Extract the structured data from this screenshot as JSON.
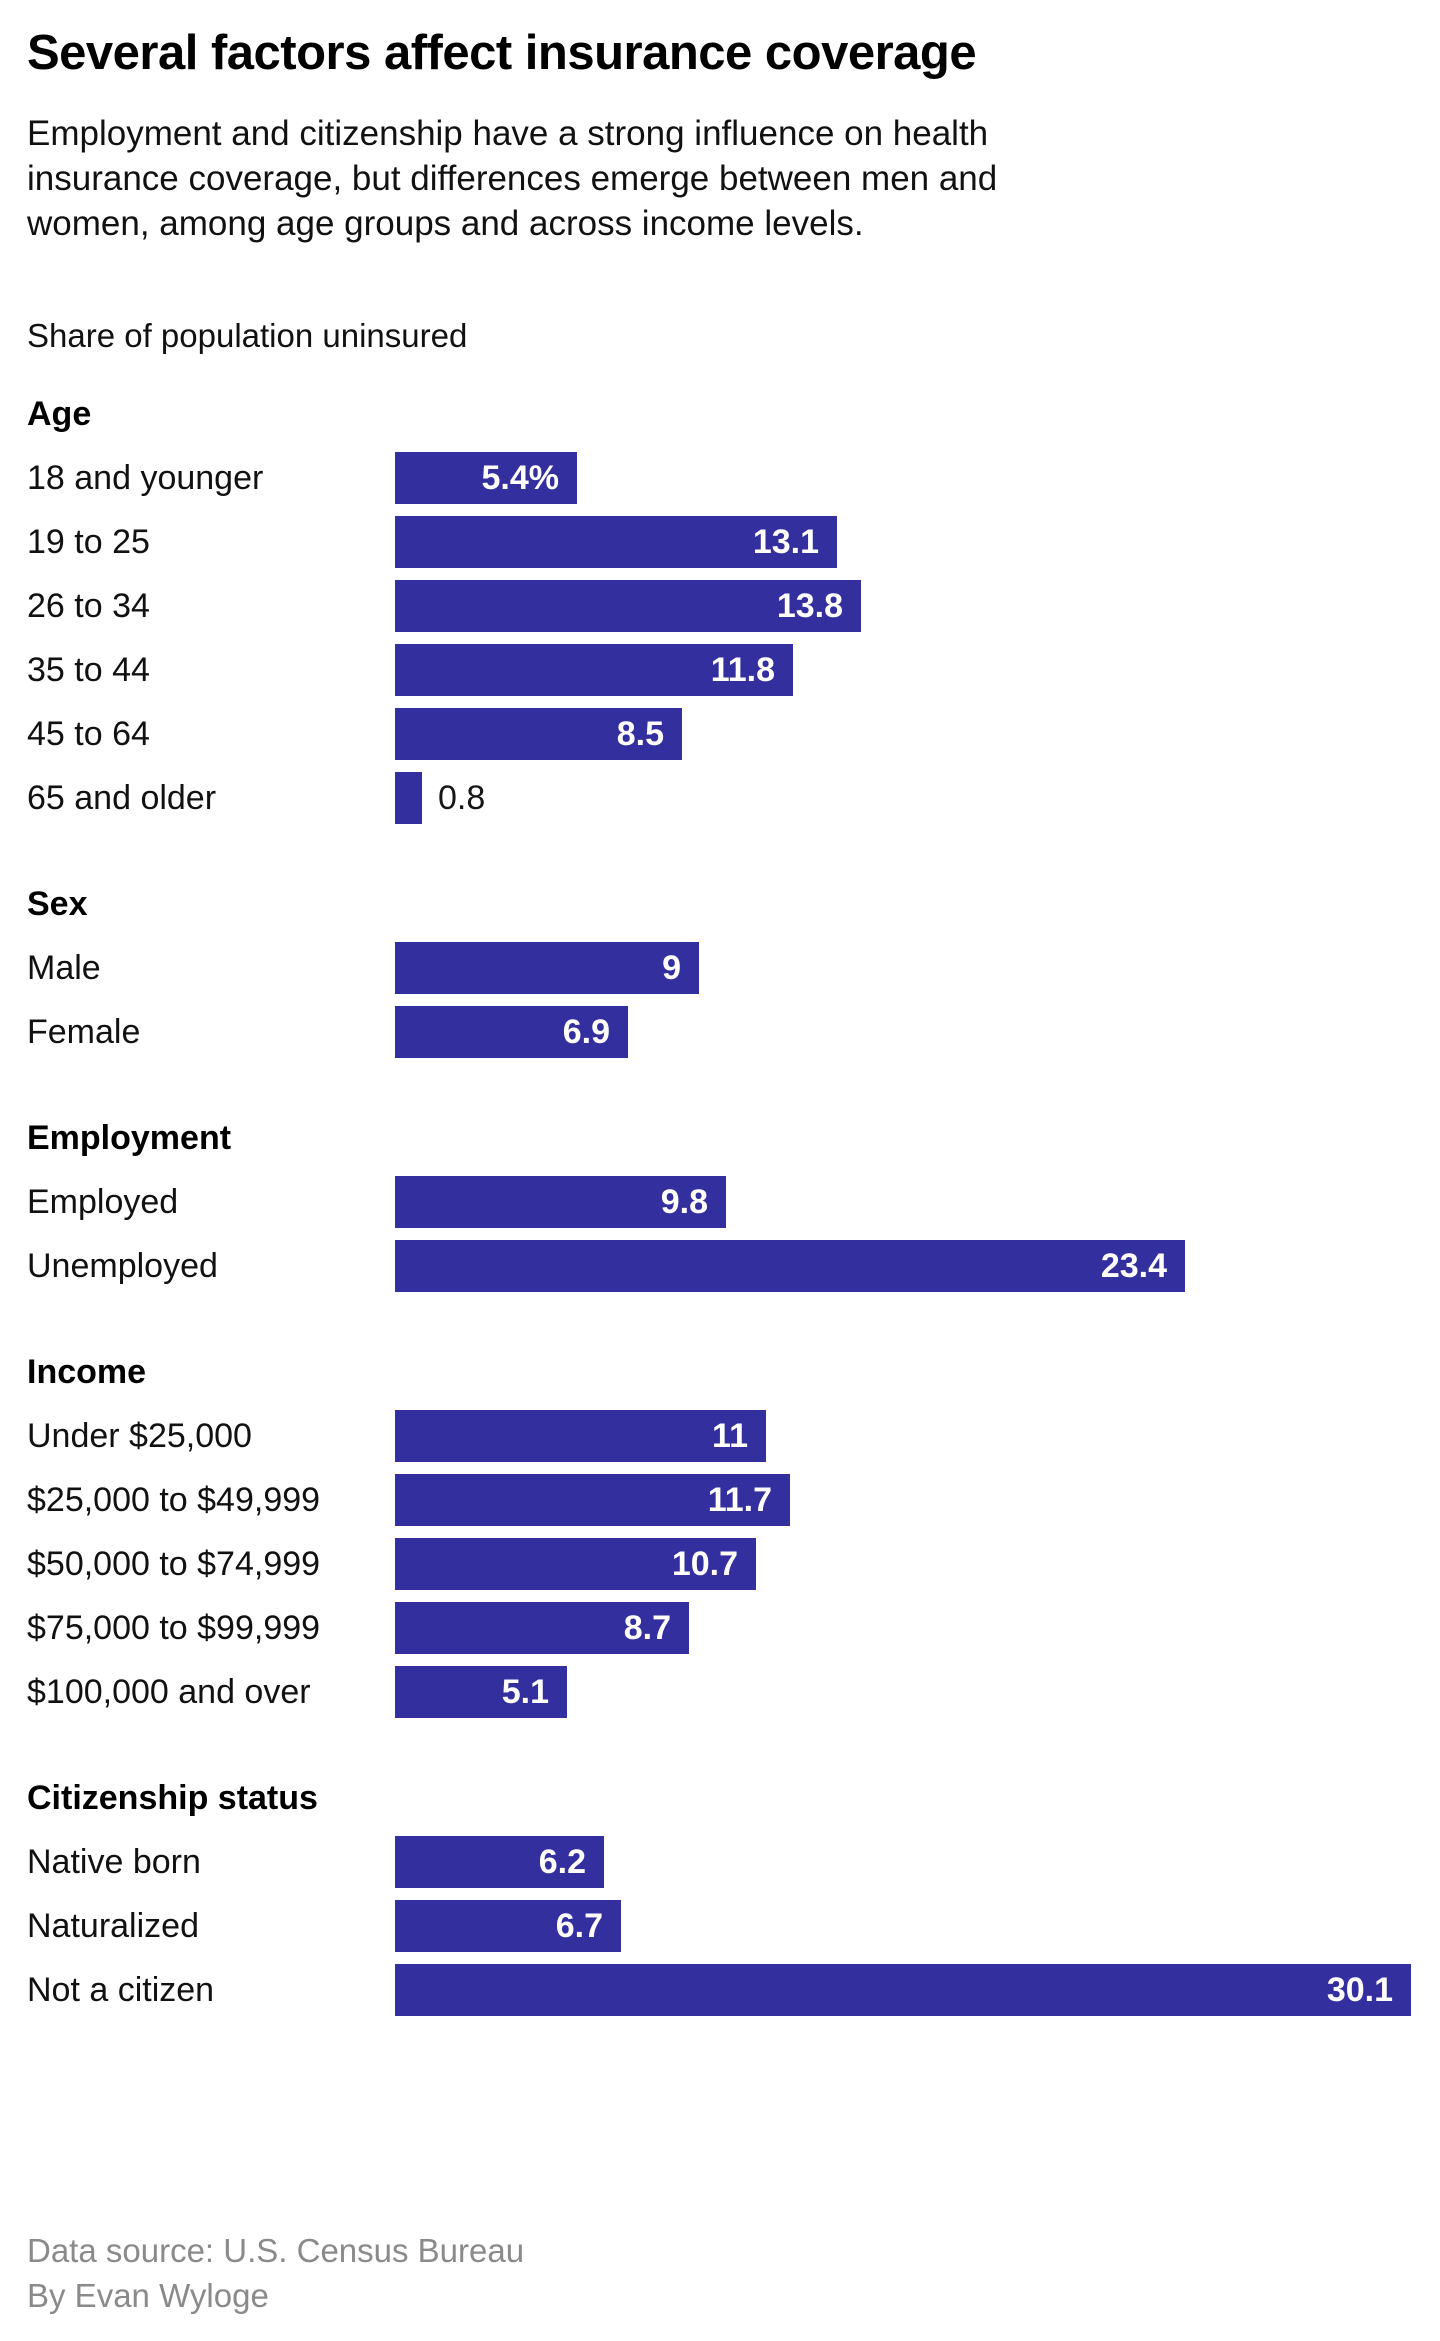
{
  "header": {
    "title": "Several factors affect insurance coverage",
    "subtitle_lines": [
      "Employment and citizenship have a strong influence on health",
      "insurance coverage, but differences emerge between men and",
      "women, among age groups and across income levels."
    ],
    "note": "Share of population uninsured"
  },
  "footer": {
    "source": "Data source: U.S. Census Bureau",
    "byline": "By Evan Wyloge"
  },
  "colors": {
    "bar": "#332f9e",
    "text": "#111111",
    "value_label": "#ffffff",
    "outside_label": "#161616",
    "muted": "#8a8a8a",
    "background": "#ffffff"
  },
  "chart_data": {
    "type": "bar",
    "orientation": "horizontal",
    "title": "Several factors affect insurance coverage",
    "value_unit": "percent share of population uninsured",
    "max_value": 30.1,
    "xlim": [
      0,
      30.1
    ],
    "grid": false,
    "legend": false,
    "groups": [
      {
        "heading": "Age",
        "rows": [
          {
            "label": "18 and younger",
            "value": 5.4,
            "display": "5.4%"
          },
          {
            "label": "19 to 25",
            "value": 13.1,
            "display": "13.1"
          },
          {
            "label": "26 to 34",
            "value": 13.8,
            "display": "13.8"
          },
          {
            "label": "35 to 44",
            "value": 11.8,
            "display": "11.8"
          },
          {
            "label": "45 to 64",
            "value": 8.5,
            "display": "8.5"
          },
          {
            "label": "65 and older",
            "value": 0.8,
            "display": "0.8"
          }
        ]
      },
      {
        "heading": "Sex",
        "rows": [
          {
            "label": "Male",
            "value": 9,
            "display": "9"
          },
          {
            "label": "Female",
            "value": 6.9,
            "display": "6.9"
          }
        ]
      },
      {
        "heading": "Employment",
        "rows": [
          {
            "label": "Employed",
            "value": 9.8,
            "display": "9.8"
          },
          {
            "label": "Unemployed",
            "value": 23.4,
            "display": "23.4"
          }
        ]
      },
      {
        "heading": "Income",
        "rows": [
          {
            "label": "Under $25,000",
            "value": 11,
            "display": "11"
          },
          {
            "label": "$25,000 to $49,999",
            "value": 11.7,
            "display": "11.7"
          },
          {
            "label": "$50,000 to $74,999",
            "value": 10.7,
            "display": "10.7"
          },
          {
            "label": "$75,000 to $99,999",
            "value": 8.7,
            "display": "8.7"
          },
          {
            "label": "$100,000 and over",
            "value": 5.1,
            "display": "5.1"
          }
        ]
      },
      {
        "heading": "Citizenship status",
        "rows": [
          {
            "label": "Native born",
            "value": 6.2,
            "display": "6.2"
          },
          {
            "label": "Naturalized",
            "value": 6.7,
            "display": "6.7"
          },
          {
            "label": "Not a citizen",
            "value": 30.1,
            "display": "30.1"
          }
        ]
      }
    ]
  }
}
